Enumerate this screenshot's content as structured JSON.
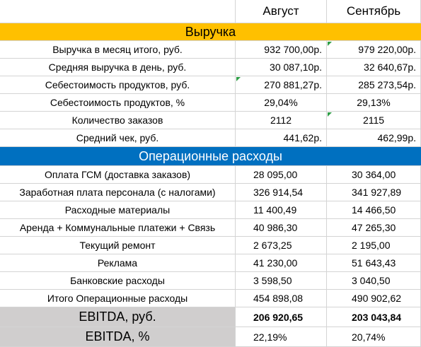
{
  "header": {
    "columns": [
      "Август",
      "Сентябрь"
    ]
  },
  "sections": [
    {
      "title": "Выручка",
      "rows": [
        [
          "Выручка в месяц итого, руб.",
          "932 700,00р.",
          "979 220,00р."
        ],
        [
          "Средняя выручка в день, руб.",
          "30 087,10р.",
          "32 640,67р."
        ],
        [
          "Себестоимость продуктов, руб.",
          "270 881,27р.",
          "285 273,54р."
        ],
        [
          "Себестоимость продуктов, %",
          "29,04%",
          "29,13%"
        ],
        [
          "Количество заказов",
          "2112",
          "2115"
        ],
        [
          "Средний чек, руб.",
          "441,62р.",
          "462,99р."
        ]
      ]
    },
    {
      "title": "Операционные расходы",
      "rows": [
        [
          "Оплата ГСМ (доставка заказов)",
          "28 095,00",
          "30 364,00"
        ],
        [
          "Заработная плата персонала (с налогами)",
          "326 914,54",
          "341 927,89"
        ],
        [
          "Расходные материалы",
          "11 400,49",
          "14 466,50"
        ],
        [
          "Аренда + Коммунальные платежи + Связь",
          "40 986,30",
          "47 265,30"
        ],
        [
          "Текущий ремонт",
          "2 673,25",
          "2 195,00"
        ],
        [
          "Реклама",
          "41 230,00",
          "51 643,43"
        ],
        [
          "Банковские расходы",
          "3 598,50",
          "3 040,50"
        ],
        [
          "Итого Операционные расходы",
          "454 898,08",
          "490 902,62"
        ]
      ]
    }
  ],
  "summary": [
    [
      "EBITDA, руб.",
      "206 920,65",
      "203 043,84"
    ],
    [
      "EBITDA, %",
      "22,19%",
      "20,74%"
    ]
  ]
}
